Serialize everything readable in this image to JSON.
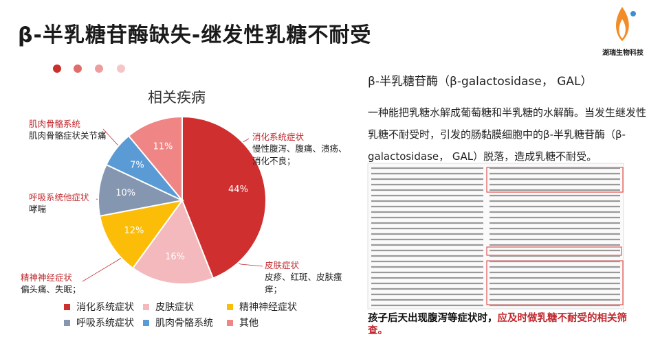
{
  "header": {
    "title": "β-半乳糖苷酶缺失-继发性乳糖不耐受",
    "logo": "湖瑞生物科技"
  },
  "chart_data": {
    "type": "pie",
    "title": "相关疾病",
    "categories": [
      "消化系统症状",
      "皮肤症状",
      "精神神经症状",
      "呼吸系统症状",
      "肌肉骨骼系统",
      "其他"
    ],
    "values": [
      44,
      16,
      12,
      10,
      7,
      11
    ],
    "value_labels": [
      "44%",
      "16%",
      "12%",
      "10%",
      "7%",
      "11%"
    ],
    "colors": [
      "#cf2f2f",
      "#f3b9bc",
      "#fbbd08",
      "#8496b0",
      "#5b9bd5",
      "#ef8585"
    ],
    "callouts": [
      {
        "name": "消化系统症状",
        "text": "慢性腹泻、腹痛、溃疡、消化不良；"
      },
      {
        "name": "肌肉骨骼系统",
        "text": "肌肉骨骼症状关节痛"
      },
      {
        "name": "呼吸系统他症状",
        "text": "哮喘"
      },
      {
        "name": "精神神经症状",
        "text": "偏头痛、失眠；"
      },
      {
        "name": "皮肤症状",
        "text": "皮疹、红斑、皮肤瘙痒；"
      }
    ]
  },
  "info": {
    "heading": "β-半乳糖苷酶（β-galactosidase， GAL）",
    "paragraph": "一种能把乳糖水解成葡萄糖和半乳糖的水解酶。当发生继发性乳糖不耐受时，引发的肠黏膜细胞中的β-半乳糖苷酶（β-galactosidase， GAL）脱落，造成乳糖不耐受。",
    "caption_black": "孩子后天出现腹泻等症状时，",
    "caption_red": "应及时做乳糖不耐受的相关筛查。"
  }
}
